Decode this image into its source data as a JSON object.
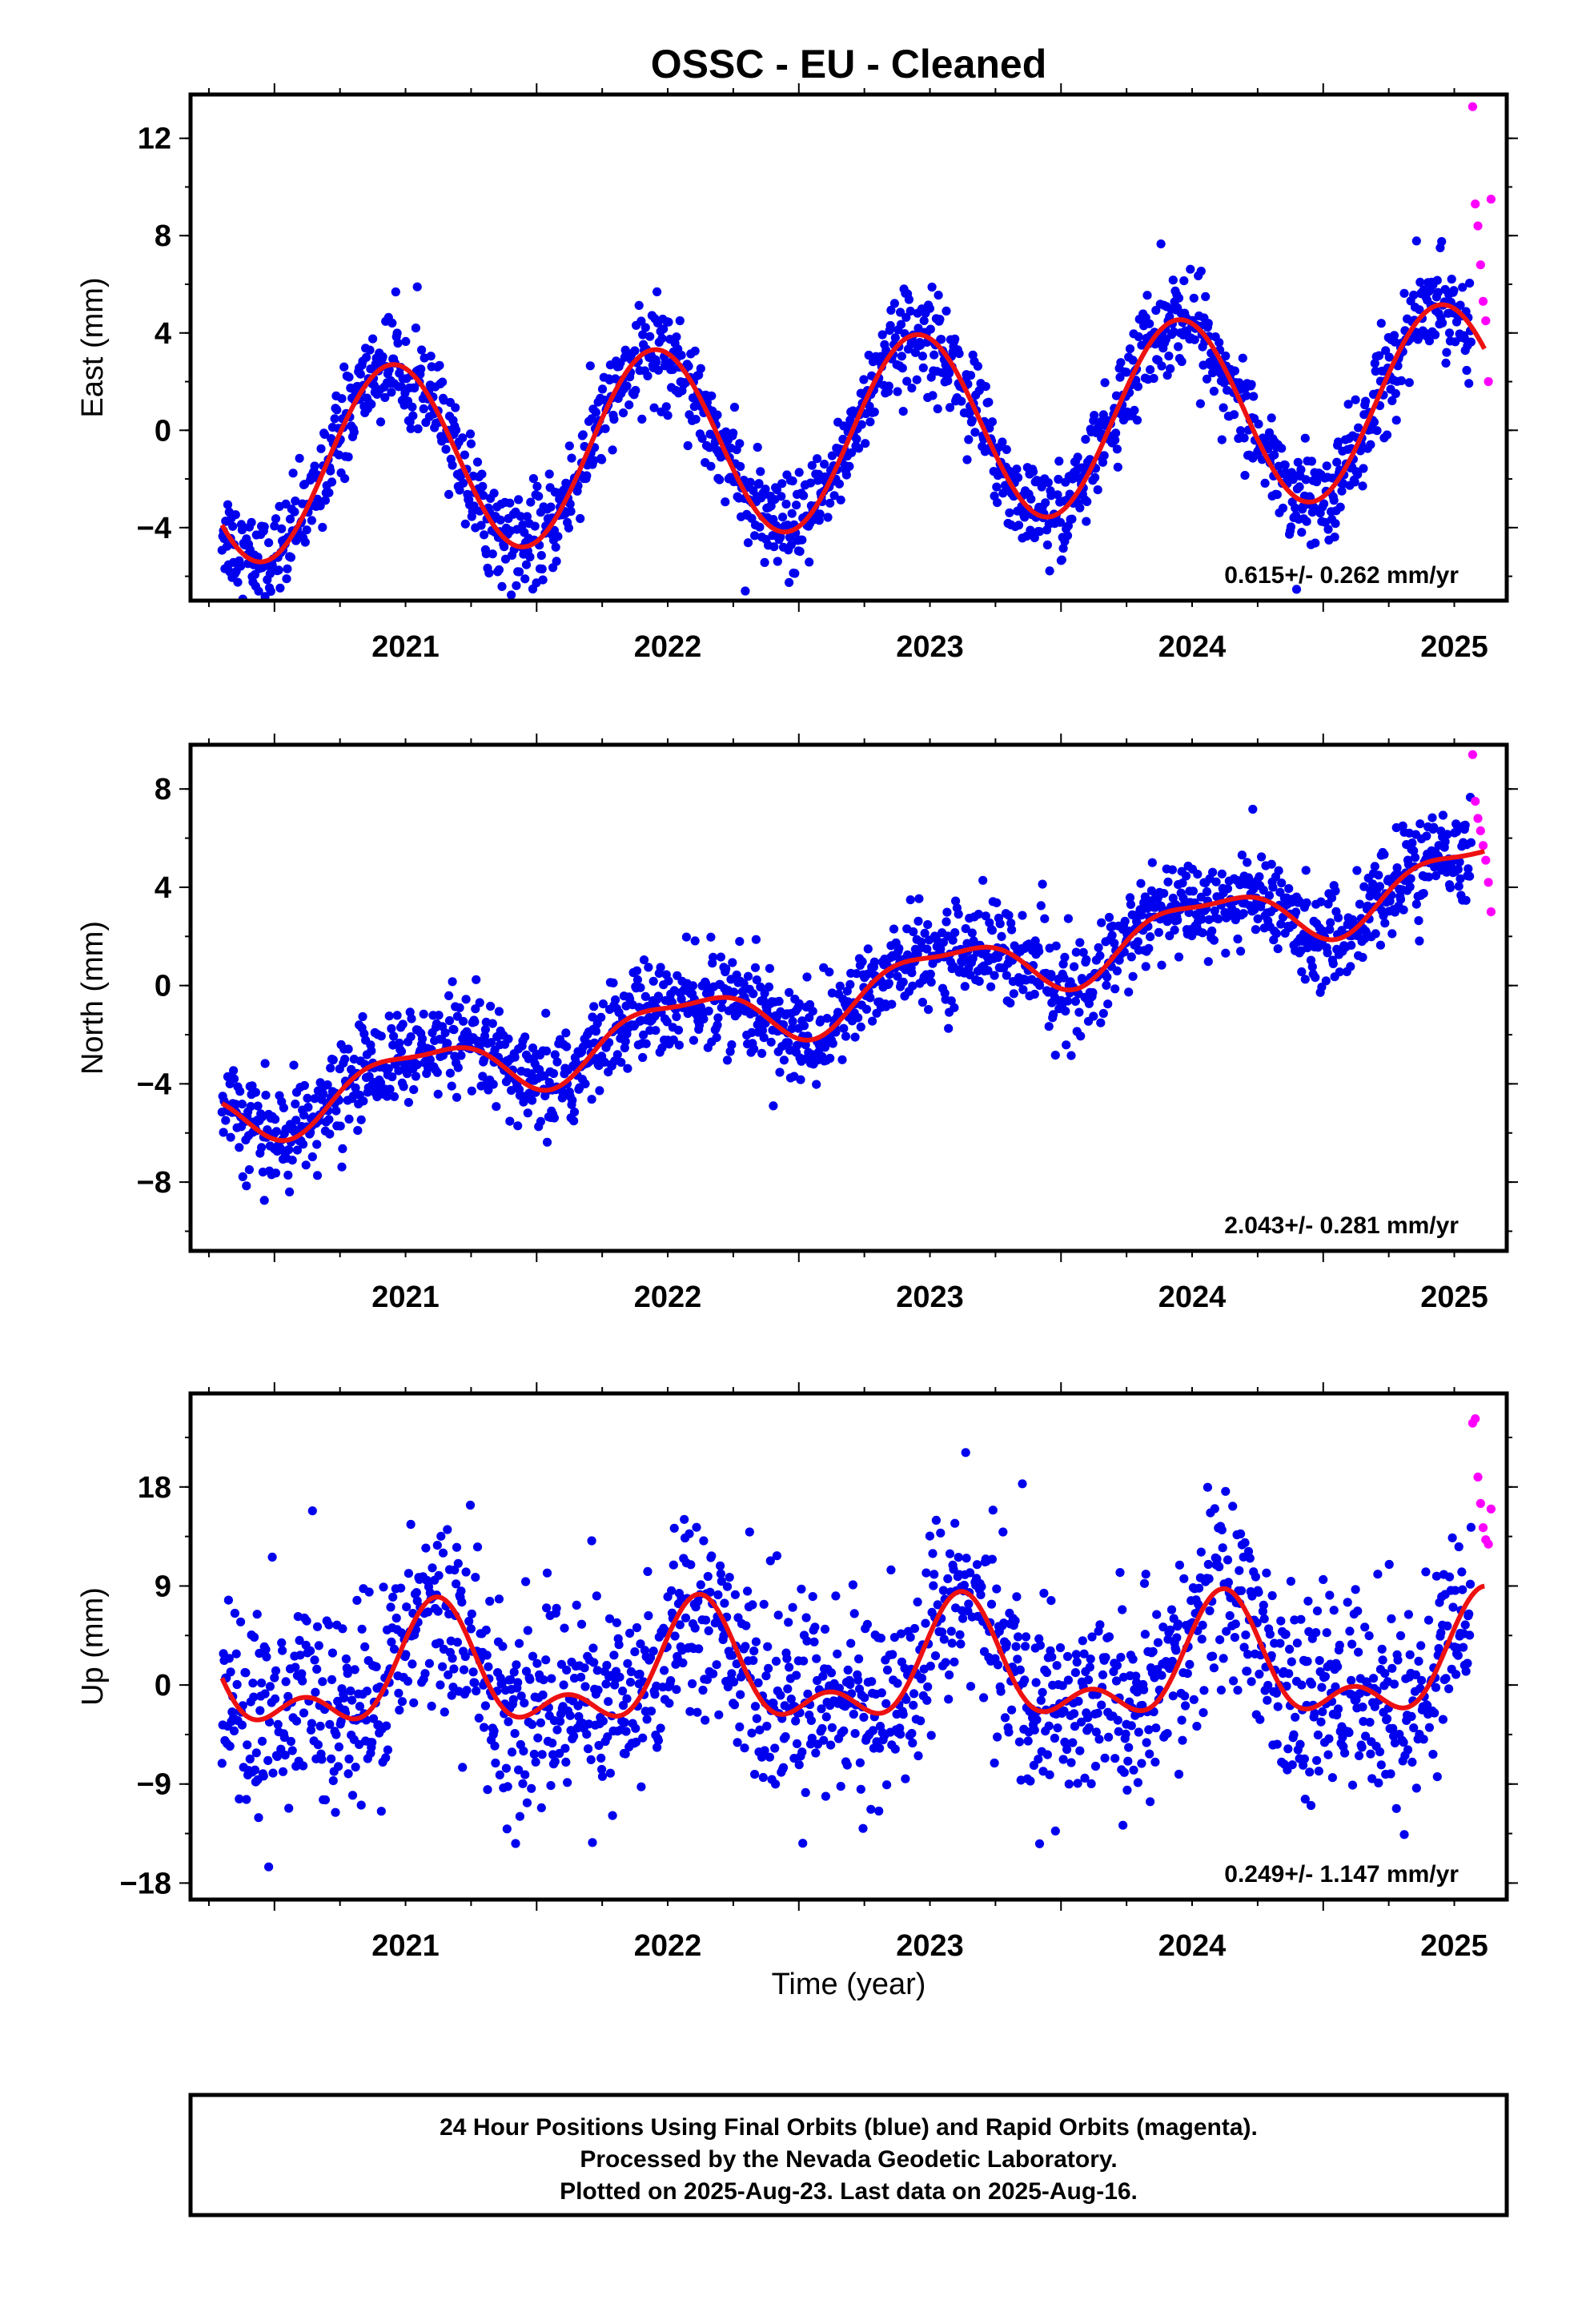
{
  "figure": {
    "title": "OSSC  - EU - Cleaned",
    "xlabel": "Time (year)",
    "footer": [
      "24 Hour Positions Using Final Orbits (blue) and Rapid Orbits (magenta).",
      "Processed by the Nevada Geodetic Laboratory.",
      "Plotted on 2025-Aug-23. Last data on 2025-Aug-16."
    ],
    "colors": {
      "final": "#0000ee",
      "rapid": "#ff00ff",
      "fit": "#ee1111"
    }
  },
  "chart_data": [
    {
      "type": "scatter",
      "ylabel": "East (mm)",
      "rate": "0.615+/- 0.262 mm/yr",
      "xlim": [
        2020.68,
        2025.7
      ],
      "ylim": [
        -7,
        13.8
      ],
      "yticks": [
        -4,
        0,
        4,
        8,
        12
      ],
      "ytick_labels": [
        "−4",
        "0",
        "4",
        "8",
        "12"
      ],
      "xticks": [
        2021,
        2022,
        2023,
        2024,
        2025
      ],
      "model": {
        "mean": -1.6,
        "trend": 0.615,
        "t0": 2020.8,
        "amp": 3.9,
        "phase": 2021.45,
        "amp2": 0.0,
        "phase2": 2021.0
      },
      "scatter_sigma": 1.0,
      "rapid": {
        "x": [
          2025.57,
          2025.58,
          2025.59,
          2025.6,
          2025.61,
          2025.62,
          2025.63,
          2025.64
        ],
        "y": [
          13.3,
          9.3,
          8.4,
          6.8,
          5.3,
          4.5,
          2.0,
          9.5
        ]
      }
    },
    {
      "type": "scatter",
      "ylabel": "North (mm)",
      "rate": "2.043+/- 0.281 mm/yr",
      "xlim": [
        2020.68,
        2025.7
      ],
      "ylim": [
        -10.8,
        9.8
      ],
      "yticks": [
        -8,
        -4,
        0,
        4,
        8
      ],
      "ytick_labels": [
        "−8",
        "−4",
        "0",
        "4",
        "8"
      ],
      "xticks": [
        2021,
        2022,
        2023,
        2024,
        2025
      ],
      "model": {
        "mean": -5.2,
        "trend": 2.043,
        "t0": 2020.8,
        "amp": 1.2,
        "phase": 2021.55,
        "amp2": 0.4,
        "phase2": 2021.3
      },
      "scatter_sigma": 1.0,
      "rapid": {
        "x": [
          2025.57,
          2025.58,
          2025.59,
          2025.6,
          2025.61,
          2025.62,
          2025.63,
          2025.64
        ],
        "y": [
          9.4,
          7.5,
          6.8,
          6.3,
          5.7,
          5.1,
          4.2,
          3.0
        ]
      }
    },
    {
      "type": "scatter",
      "ylabel": "Up (mm)",
      "rate": "0.249+/- 1.147 mm/yr",
      "xlim": [
        2020.68,
        2025.7
      ],
      "ylim": [
        -19.5,
        26.5
      ],
      "yticks": [
        -18,
        -9,
        0,
        9,
        18
      ],
      "ytick_labels": [
        "−18",
        "−9",
        "0",
        "9",
        "18"
      ],
      "xticks": [
        2021,
        2022,
        2023,
        2024,
        2025
      ],
      "model": {
        "mean": 0.5,
        "trend": 0.249,
        "t0": 2020.8,
        "amp": 4.5,
        "phase": 2021.62,
        "amp2": 2.8,
        "phase2": 2021.12
      },
      "scatter_sigma": 4.5,
      "rapid": {
        "x": [
          2025.57,
          2025.58,
          2025.59,
          2025.6,
          2025.61,
          2025.62,
          2025.63,
          2025.64
        ],
        "y": [
          23.8,
          24.2,
          18.9,
          16.5,
          14.3,
          13.2,
          12.8,
          16.0
        ]
      }
    }
  ]
}
